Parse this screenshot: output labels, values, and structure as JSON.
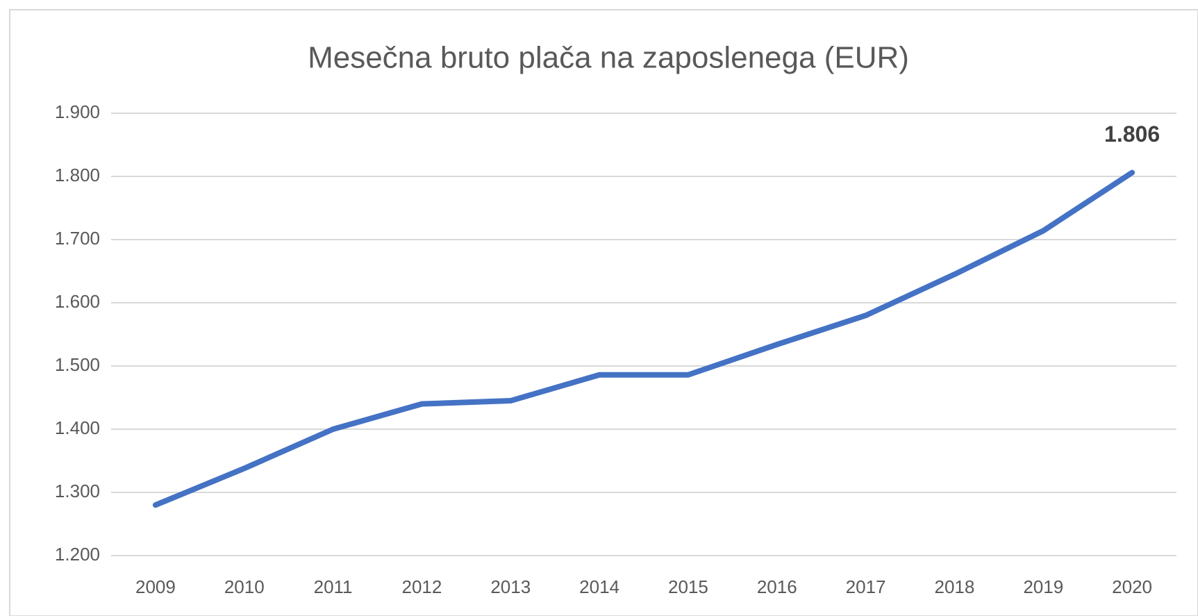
{
  "chart_data": {
    "type": "line",
    "title": "Mesečna bruto plača na zaposlenega (EUR)",
    "categories": [
      "2009",
      "2010",
      "2011",
      "2012",
      "2013",
      "2014",
      "2015",
      "2016",
      "2017",
      "2018",
      "2019",
      "2020"
    ],
    "series": [
      {
        "color": "#4472c4",
        "values": [
          1280,
          1338,
          1400,
          1440,
          1445,
          1486,
          1486,
          1534,
          1580,
          1645,
          1714,
          1806
        ],
        "value_labels": [
          null,
          null,
          null,
          null,
          null,
          null,
          null,
          null,
          null,
          null,
          null,
          "1.806"
        ]
      }
    ],
    "ylim": [
      1200,
      1900
    ],
    "yticks": [
      {
        "value": 1200,
        "label": "1.200"
      },
      {
        "value": 1300,
        "label": "1.300"
      },
      {
        "value": 1400,
        "label": "1.400"
      },
      {
        "value": 1500,
        "label": "1.500"
      },
      {
        "value": 1600,
        "label": "1.600"
      },
      {
        "value": 1700,
        "label": "1.700"
      },
      {
        "value": 1800,
        "label": "1.800"
      },
      {
        "value": 1900,
        "label": "1.900"
      }
    ],
    "grid": true
  }
}
